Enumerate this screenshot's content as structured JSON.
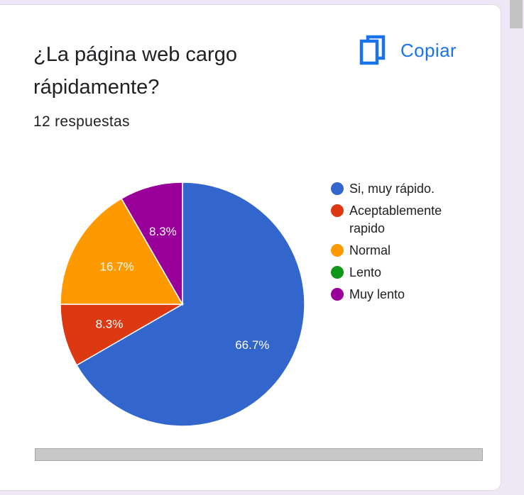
{
  "question": {
    "title_line1": "¿La página web cargo",
    "title_line2": "rápidamente?",
    "response_count": "12 respuestas"
  },
  "actions": {
    "copy_label": "Copiar",
    "copy_icon": "copy-icon"
  },
  "colors": {
    "accent": "#1a73e8",
    "page_background": "#ede7f6"
  },
  "chart_data": {
    "type": "pie",
    "title": "¿La página web cargo rápidamente?",
    "start_angle_deg": 0,
    "direction": "clockwise",
    "legend_position": "right",
    "slices": [
      {
        "name": "Si, muy rápido.",
        "value": 8,
        "percent_label": "66.7%",
        "color": "#3366cc",
        "label_color": "#ffffff"
      },
      {
        "name": "Aceptablemente rapido",
        "value": 1,
        "percent_label": "8.3%",
        "color": "#dc3912",
        "label_color": "#ffffff"
      },
      {
        "name": "Normal",
        "value": 2,
        "percent_label": "16.7%",
        "color": "#ff9900",
        "label_color": "#ffffff"
      },
      {
        "name": "Lento",
        "value": 0,
        "percent_label": "",
        "color": "#109618",
        "label_color": "#ffffff"
      },
      {
        "name": "Muy lento",
        "value": 1,
        "percent_label": "8.3%",
        "color": "#990099",
        "label_color": "#ffffff"
      }
    ],
    "legend": [
      {
        "lines": [
          "Si, muy rápido."
        ],
        "color": "#3366cc"
      },
      {
        "lines": [
          "Aceptablemente",
          "rapido"
        ],
        "color": "#dc3912"
      },
      {
        "lines": [
          "Normal"
        ],
        "color": "#ff9900"
      },
      {
        "lines": [
          "Lento"
        ],
        "color": "#109618"
      },
      {
        "lines": [
          "Muy lento"
        ],
        "color": "#990099"
      }
    ]
  }
}
